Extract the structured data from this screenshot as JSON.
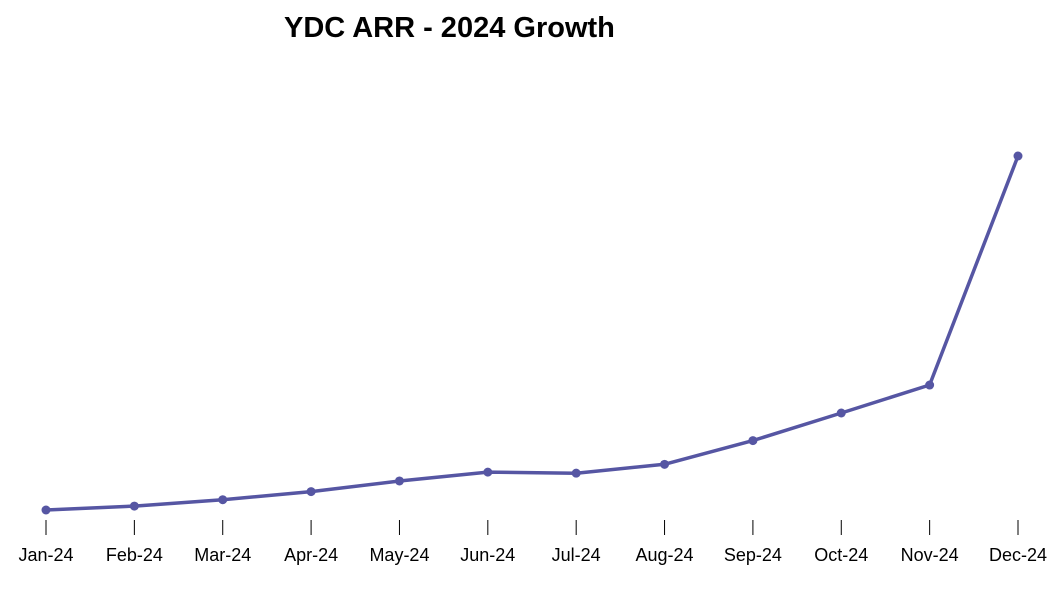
{
  "chart_data": {
    "type": "line",
    "title": "YDC ARR - 2024 Growth",
    "xlabel": "",
    "ylabel": "",
    "categories": [
      "Jan-24",
      "Feb-24",
      "Mar-24",
      "Apr-24",
      "May-24",
      "Jun-24",
      "Jul-24",
      "Aug-24",
      "Sep-24",
      "Oct-24",
      "Nov-24",
      "Dec-24"
    ],
    "values": [
      0,
      1.1,
      2.9,
      5.2,
      8.2,
      10.7,
      10.4,
      12.9,
      19.6,
      27.4,
      35.3,
      100
    ],
    "ylim": [
      0,
      100
    ],
    "y_axis_visible": false,
    "grid": false,
    "markers": true,
    "color": "#5656a3"
  }
}
